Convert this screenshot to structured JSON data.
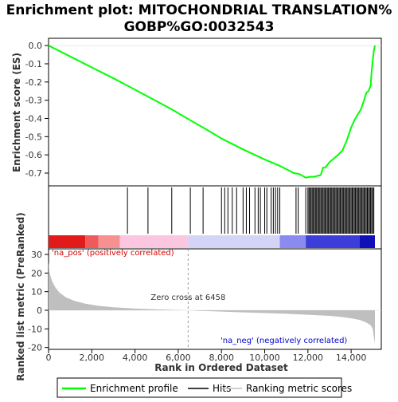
{
  "chart_data": {
    "type": "line",
    "title_line1": "Enrichment plot: MITOCHONDRIAL TRANSLATION%",
    "title_line2": "GOBP%GO:0032543",
    "es_panel": {
      "ylabel": "Enrichment score (ES)",
      "ylim": [
        -0.77,
        0.04
      ],
      "yticks": [
        "0.0",
        "-0.1",
        "-0.2",
        "-0.3",
        "-0.4",
        "-0.5",
        "-0.6",
        "-0.7"
      ],
      "ytick_values": [
        0.0,
        -0.1,
        -0.2,
        -0.3,
        -0.4,
        -0.5,
        -0.6,
        -0.7
      ],
      "series": [
        {
          "name": "Enrichment profile",
          "color": "#00ff00",
          "x": [
            0,
            1000,
            2000,
            3000,
            3650,
            4600,
            5700,
            6560,
            7150,
            8000,
            9000,
            10000,
            10700,
            11350,
            11600,
            11900,
            12100,
            12300,
            12600,
            12700,
            12800,
            13000,
            13200,
            13400,
            13600,
            13800,
            14000,
            14150,
            14300,
            14450,
            14600,
            14700,
            14800,
            14900,
            14950,
            15000,
            15050,
            15100
          ],
          "y": [
            0.0,
            -0.06,
            -0.12,
            -0.18,
            -0.22,
            -0.28,
            -0.35,
            -0.41,
            -0.45,
            -0.51,
            -0.57,
            -0.625,
            -0.66,
            -0.7,
            -0.705,
            -0.725,
            -0.72,
            -0.72,
            -0.71,
            -0.67,
            -0.67,
            -0.64,
            -0.62,
            -0.6,
            -0.575,
            -0.52,
            -0.45,
            -0.41,
            -0.38,
            -0.35,
            -0.3,
            -0.26,
            -0.25,
            -0.22,
            -0.14,
            -0.08,
            -0.03,
            0.0
          ]
        }
      ]
    },
    "hits": [
      3650,
      4600,
      5700,
      6560,
      7150,
      8000,
      8150,
      8300,
      8500,
      8700,
      9000,
      9150,
      9300,
      9550,
      9700,
      9800,
      10000,
      10100,
      10300,
      10400,
      10500,
      10600,
      10700,
      11450,
      11550,
      11900,
      12000,
      12050,
      12100,
      12150,
      12200,
      12250,
      12300,
      12350,
      12400,
      12450,
      12500,
      12550,
      12600,
      12650,
      12700,
      12750,
      12800,
      12850,
      12900,
      12950,
      13000,
      13050,
      13100,
      13150,
      13200,
      13250,
      13300,
      13350,
      13400,
      13450,
      13500,
      13550,
      13600,
      13650,
      13700,
      13750,
      13800,
      13850,
      13900,
      13950,
      14000,
      14050,
      14100,
      14150,
      14200,
      14250,
      14300,
      14350,
      14400,
      14450,
      14500,
      14550,
      14600,
      14650,
      14700,
      14750,
      14800,
      14850,
      14900,
      14950,
      15000,
      15050
    ],
    "ranked_panel": {
      "ylabel": "Ranked list metric (PreRanked)",
      "ylim": [
        -21,
        33
      ],
      "yticks": [
        "30",
        "20",
        "10",
        "0",
        "-10",
        "-20"
      ],
      "ytick_values": [
        30,
        20,
        10,
        0,
        -10,
        -20
      ],
      "metric_profile": {
        "x": [
          0,
          50,
          150,
          300,
          500,
          800,
          1200,
          1700,
          2300,
          3000,
          4000,
          5000,
          6000,
          6458,
          7000,
          8000,
          9000,
          10000,
          11000,
          12000,
          13000,
          13500,
          14000,
          14400,
          14700,
          14900,
          15000,
          15050,
          15100
        ],
        "y": [
          26,
          20,
          16,
          12.5,
          9.5,
          7,
          5,
          3.5,
          2.4,
          1.6,
          0.9,
          0.45,
          0.15,
          0,
          -0.3,
          -0.7,
          -1.1,
          -1.5,
          -1.9,
          -2.4,
          -3,
          -3.5,
          -4.3,
          -5.2,
          -6.5,
          -8,
          -10,
          -14,
          -18
        ]
      },
      "label_pos": "'na_pos' (positively correlated)",
      "label_neg": "'na_neg' (negatively correlated)",
      "zero_cross_label": "Zero cross at 6458",
      "zero_cross": 6458,
      "pos_color": "#d40000",
      "neg_color": "#0000d0"
    },
    "x_axis": {
      "xlabel": "Rank in Ordered Dataset",
      "xlim": [
        0,
        15100
      ],
      "xticks": [
        "0",
        "2,000",
        "4,000",
        "6,000",
        "8,000",
        "10,000",
        "12,000",
        "14,000"
      ],
      "xtick_values": [
        0,
        2000,
        4000,
        6000,
        8000,
        10000,
        12000,
        14000
      ]
    },
    "legend": [
      {
        "label": "Enrichment profile",
        "color": "#00ff00"
      },
      {
        "label": "Hits",
        "color": "#000000"
      },
      {
        "label": "Ranking metric scores",
        "color": "#c0c0c0"
      }
    ]
  }
}
